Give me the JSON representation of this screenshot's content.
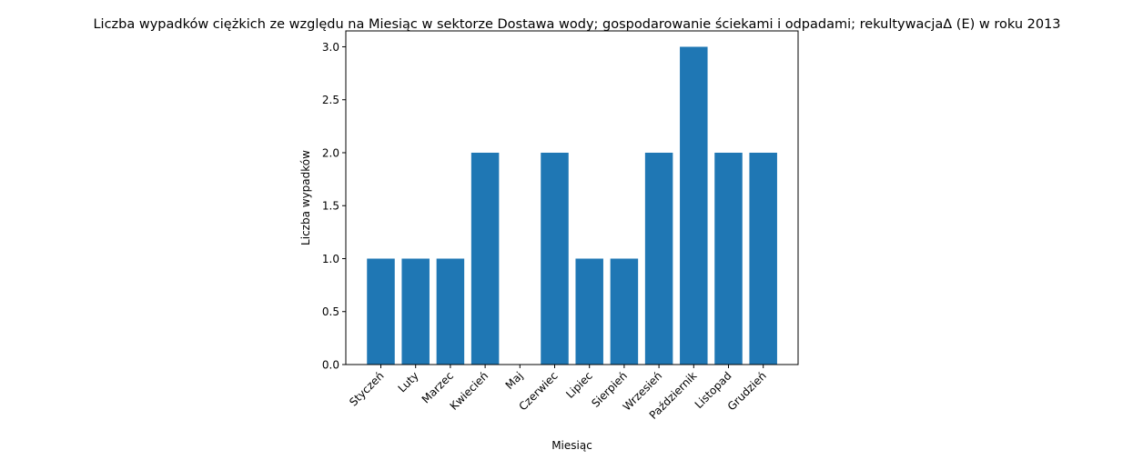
{
  "chart_data": {
    "type": "bar",
    "title": "Liczba wypadków ciężkich ze względu na Miesiąc w sektorze Dostawa wody; gospodarowanie ściekami i odpadami;  rekultywacjaΔ  (E) w roku 2013",
    "xlabel": "Miesiąc",
    "ylabel": "Liczba wypadków",
    "categories": [
      "Styczeń",
      "Luty",
      "Marzec",
      "Kwiecień",
      "Maj",
      "Czerwiec",
      "Lipiec",
      "Sierpień",
      "Wrzesień",
      "Październik",
      "Listopad",
      "Grudzień"
    ],
    "values": [
      1,
      1,
      1,
      2,
      0,
      2,
      1,
      1,
      2,
      3,
      2,
      2
    ],
    "ylim": [
      0,
      3.15
    ],
    "yticks": [
      "0.0",
      "0.5",
      "1.0",
      "1.5",
      "2.0",
      "2.5",
      "3.0"
    ],
    "grid": false,
    "colors": {
      "bar": "#1f77b4"
    }
  }
}
